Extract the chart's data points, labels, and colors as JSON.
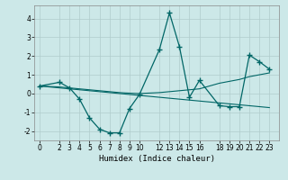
{
  "x": [
    0,
    2,
    3,
    4,
    5,
    6,
    7,
    8,
    9,
    10,
    12,
    13,
    14,
    15,
    16,
    18,
    19,
    20,
    21,
    22,
    23
  ],
  "y_main": [
    0.4,
    0.6,
    0.3,
    -0.3,
    -1.3,
    -1.9,
    -2.1,
    -2.1,
    -0.8,
    -0.05,
    2.35,
    4.3,
    2.5,
    -0.2,
    0.7,
    -0.65,
    -0.7,
    -0.7,
    2.05,
    1.7,
    1.3
  ],
  "y_trend1": [
    0.4,
    0.35,
    0.3,
    0.25,
    0.2,
    0.15,
    0.1,
    0.05,
    0.02,
    -0.0,
    0.05,
    0.1,
    0.15,
    0.2,
    0.25,
    0.55,
    0.65,
    0.75,
    0.9,
    1.0,
    1.1
  ],
  "y_trend2": [
    0.4,
    0.3,
    0.25,
    0.2,
    0.15,
    0.1,
    0.05,
    0.0,
    -0.05,
    -0.1,
    -0.2,
    -0.25,
    -0.3,
    -0.35,
    -0.4,
    -0.5,
    -0.55,
    -0.6,
    -0.65,
    -0.7,
    -0.75
  ],
  "line_color": "#006666",
  "bg_color": "#cce8e8",
  "grid_color": "#b0cccc",
  "xlabel": "Humidex (Indice chaleur)",
  "ylim": [
    -2.5,
    4.7
  ],
  "xlim": [
    -0.5,
    24.0
  ],
  "yticks": [
    -2,
    -1,
    0,
    1,
    2,
    3,
    4
  ],
  "xticks": [
    0,
    2,
    3,
    4,
    5,
    6,
    7,
    8,
    9,
    10,
    12,
    13,
    14,
    15,
    16,
    18,
    19,
    20,
    21,
    22,
    23
  ],
  "xtick_labels": [
    "0",
    "2",
    "3",
    "4",
    "5",
    "6",
    "7",
    "8",
    "9",
    "10",
    "12",
    "13",
    "14",
    "15",
    "16",
    "18",
    "19",
    "20",
    "21",
    "22",
    "23"
  ]
}
